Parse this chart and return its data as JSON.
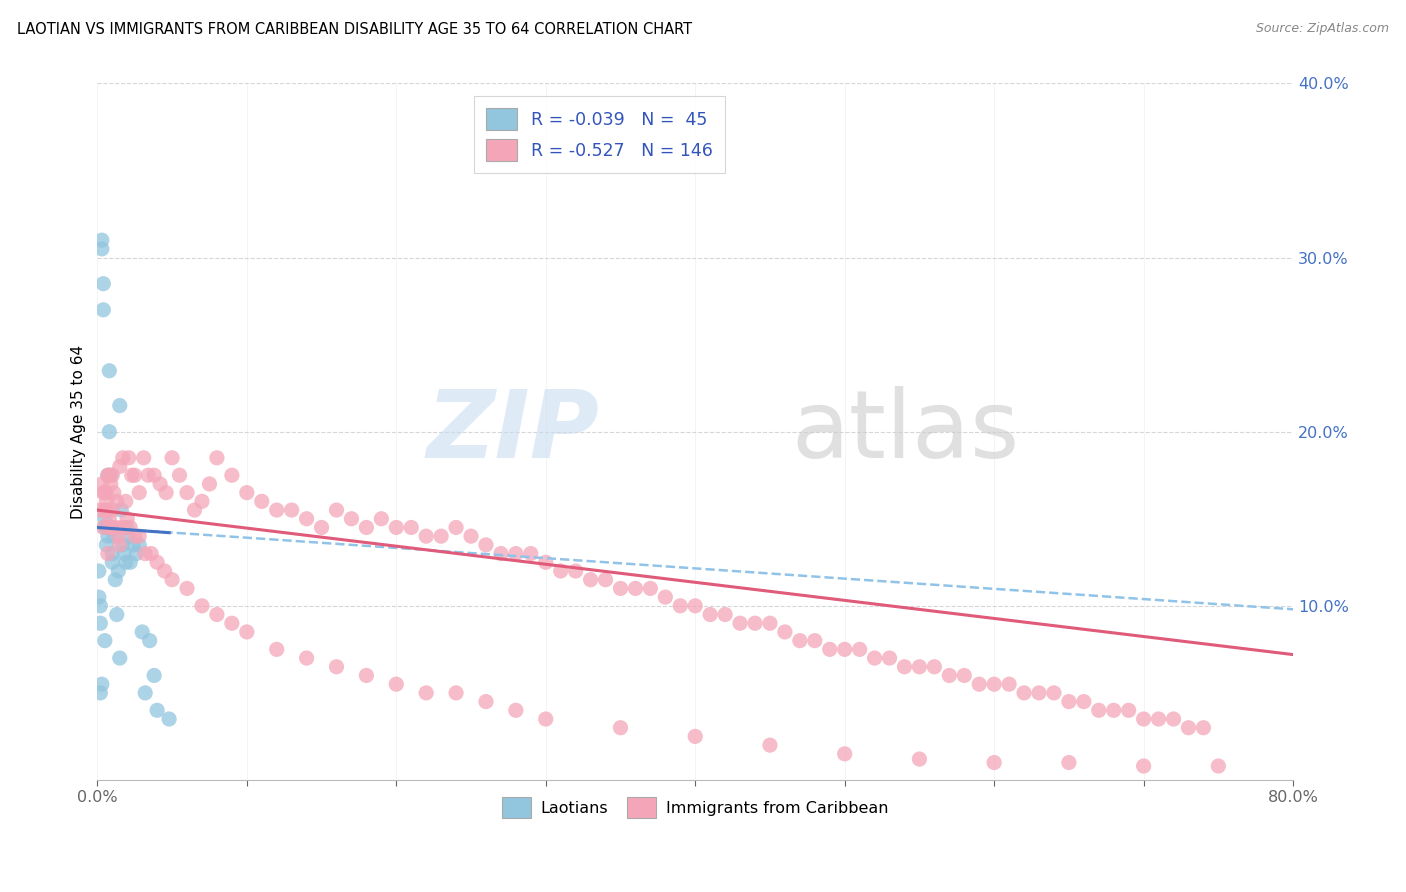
{
  "title": "LAOTIAN VS IMMIGRANTS FROM CARIBBEAN DISABILITY AGE 35 TO 64 CORRELATION CHART",
  "source": "Source: ZipAtlas.com",
  "ylabel": "Disability Age 35 to 64",
  "xmin": 0.0,
  "xmax": 0.8,
  "ymin": 0.0,
  "ymax": 0.4,
  "color_blue": "#92c5de",
  "color_pink": "#f4a6b8",
  "color_blue_line": "#4472c4",
  "color_pink_line": "#e05a7a",
  "color_dashed": "#91c3e8",
  "color_y_tick": "#4472c4",
  "lao_x": [
    0.001,
    0.002,
    0.002,
    0.003,
    0.003,
    0.004,
    0.004,
    0.005,
    0.005,
    0.005,
    0.006,
    0.006,
    0.007,
    0.007,
    0.008,
    0.008,
    0.009,
    0.009,
    0.01,
    0.01,
    0.011,
    0.012,
    0.013,
    0.014,
    0.015,
    0.016,
    0.017,
    0.018,
    0.019,
    0.02,
    0.021,
    0.022,
    0.024,
    0.026,
    0.028,
    0.03,
    0.032,
    0.035,
    0.038,
    0.04,
    0.001,
    0.002,
    0.003,
    0.048,
    0.015
  ],
  "lao_y": [
    0.12,
    0.1,
    0.09,
    0.305,
    0.31,
    0.27,
    0.285,
    0.15,
    0.145,
    0.08,
    0.135,
    0.145,
    0.175,
    0.14,
    0.235,
    0.2,
    0.175,
    0.145,
    0.13,
    0.125,
    0.14,
    0.115,
    0.095,
    0.12,
    0.215,
    0.155,
    0.135,
    0.13,
    0.125,
    0.145,
    0.14,
    0.125,
    0.135,
    0.13,
    0.135,
    0.085,
    0.05,
    0.08,
    0.06,
    0.04,
    0.105,
    0.05,
    0.055,
    0.035,
    0.07
  ],
  "carib_x": [
    0.002,
    0.003,
    0.004,
    0.005,
    0.006,
    0.007,
    0.008,
    0.009,
    0.01,
    0.011,
    0.013,
    0.015,
    0.017,
    0.019,
    0.021,
    0.023,
    0.025,
    0.028,
    0.031,
    0.034,
    0.038,
    0.042,
    0.046,
    0.05,
    0.055,
    0.06,
    0.065,
    0.07,
    0.075,
    0.08,
    0.09,
    0.1,
    0.11,
    0.12,
    0.13,
    0.14,
    0.15,
    0.16,
    0.17,
    0.18,
    0.19,
    0.2,
    0.21,
    0.22,
    0.23,
    0.24,
    0.25,
    0.26,
    0.27,
    0.28,
    0.29,
    0.3,
    0.31,
    0.32,
    0.33,
    0.34,
    0.35,
    0.36,
    0.37,
    0.38,
    0.39,
    0.4,
    0.41,
    0.42,
    0.43,
    0.44,
    0.45,
    0.46,
    0.47,
    0.48,
    0.49,
    0.5,
    0.51,
    0.52,
    0.53,
    0.54,
    0.55,
    0.56,
    0.57,
    0.58,
    0.59,
    0.6,
    0.61,
    0.62,
    0.63,
    0.64,
    0.65,
    0.66,
    0.67,
    0.68,
    0.69,
    0.7,
    0.71,
    0.72,
    0.73,
    0.74,
    0.005,
    0.006,
    0.007,
    0.008,
    0.009,
    0.01,
    0.012,
    0.014,
    0.016,
    0.018,
    0.02,
    0.022,
    0.025,
    0.028,
    0.032,
    0.036,
    0.04,
    0.045,
    0.05,
    0.06,
    0.07,
    0.08,
    0.09,
    0.1,
    0.12,
    0.14,
    0.16,
    0.18,
    0.2,
    0.22,
    0.24,
    0.26,
    0.28,
    0.3,
    0.35,
    0.4,
    0.45,
    0.5,
    0.55,
    0.6,
    0.65,
    0.7,
    0.75,
    0.004,
    0.006,
    0.008,
    0.01,
    0.015
  ],
  "carib_y": [
    0.155,
    0.17,
    0.145,
    0.165,
    0.16,
    0.175,
    0.175,
    0.17,
    0.175,
    0.165,
    0.16,
    0.18,
    0.185,
    0.16,
    0.185,
    0.175,
    0.175,
    0.165,
    0.185,
    0.175,
    0.175,
    0.17,
    0.165,
    0.185,
    0.175,
    0.165,
    0.155,
    0.16,
    0.17,
    0.185,
    0.175,
    0.165,
    0.16,
    0.155,
    0.155,
    0.15,
    0.145,
    0.155,
    0.15,
    0.145,
    0.15,
    0.145,
    0.145,
    0.14,
    0.14,
    0.145,
    0.14,
    0.135,
    0.13,
    0.13,
    0.13,
    0.125,
    0.12,
    0.12,
    0.115,
    0.115,
    0.11,
    0.11,
    0.11,
    0.105,
    0.1,
    0.1,
    0.095,
    0.095,
    0.09,
    0.09,
    0.09,
    0.085,
    0.08,
    0.08,
    0.075,
    0.075,
    0.075,
    0.07,
    0.07,
    0.065,
    0.065,
    0.065,
    0.06,
    0.06,
    0.055,
    0.055,
    0.055,
    0.05,
    0.05,
    0.05,
    0.045,
    0.045,
    0.04,
    0.04,
    0.04,
    0.035,
    0.035,
    0.035,
    0.03,
    0.03,
    0.155,
    0.165,
    0.13,
    0.145,
    0.145,
    0.155,
    0.145,
    0.14,
    0.145,
    0.145,
    0.15,
    0.145,
    0.14,
    0.14,
    0.13,
    0.13,
    0.125,
    0.12,
    0.115,
    0.11,
    0.1,
    0.095,
    0.09,
    0.085,
    0.075,
    0.07,
    0.065,
    0.06,
    0.055,
    0.05,
    0.05,
    0.045,
    0.04,
    0.035,
    0.03,
    0.025,
    0.02,
    0.015,
    0.012,
    0.01,
    0.01,
    0.008,
    0.008,
    0.165,
    0.155,
    0.15,
    0.145,
    0.135
  ],
  "blue_line_x": [
    0.0,
    0.048
  ],
  "blue_line_y": [
    0.145,
    0.142
  ],
  "dashed_line_x": [
    0.0,
    0.8
  ],
  "dashed_line_y": [
    0.145,
    0.098
  ],
  "pink_line_x": [
    0.0,
    0.8
  ],
  "pink_line_y": [
    0.155,
    0.072
  ]
}
